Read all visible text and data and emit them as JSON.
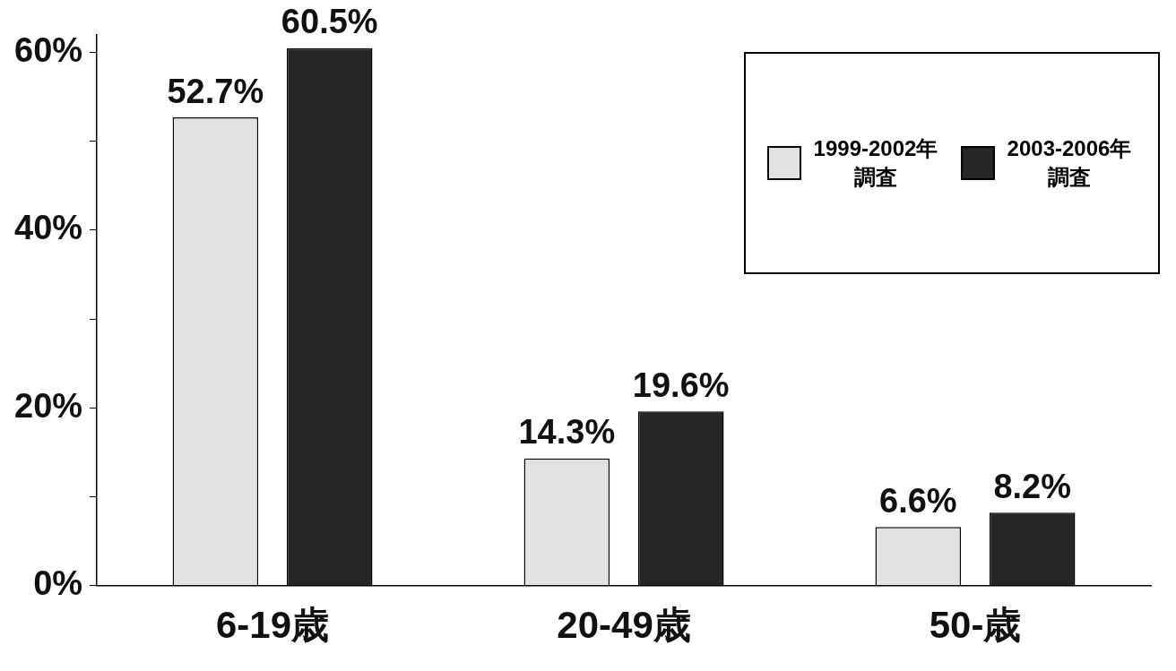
{
  "chart_data": {
    "type": "bar",
    "categories": [
      "6-19歳",
      "20-49歳",
      "50-歳"
    ],
    "series": [
      {
        "name": "1999-2002年調査",
        "color": "#e2e2e2",
        "values": [
          52.7,
          14.3,
          6.6
        ],
        "value_labels": [
          "52.7%",
          "14.3%",
          "6.6%"
        ]
      },
      {
        "name": "2003-2006年調査",
        "color": "#262626",
        "values": [
          60.5,
          19.6,
          8.2
        ],
        "value_labels": [
          "60.5%",
          "19.6%",
          "8.2%"
        ]
      }
    ],
    "ylim": [
      0,
      62
    ],
    "yticks": [
      {
        "value": 0,
        "label": "0%"
      },
      {
        "value": 10,
        "label": null
      },
      {
        "value": 20,
        "label": "20%"
      },
      {
        "value": 30,
        "label": null
      },
      {
        "value": 40,
        "label": "40%"
      },
      {
        "value": 50,
        "label": null
      },
      {
        "value": 60,
        "label": "60%"
      }
    ],
    "grid": false,
    "legend": "top right"
  }
}
